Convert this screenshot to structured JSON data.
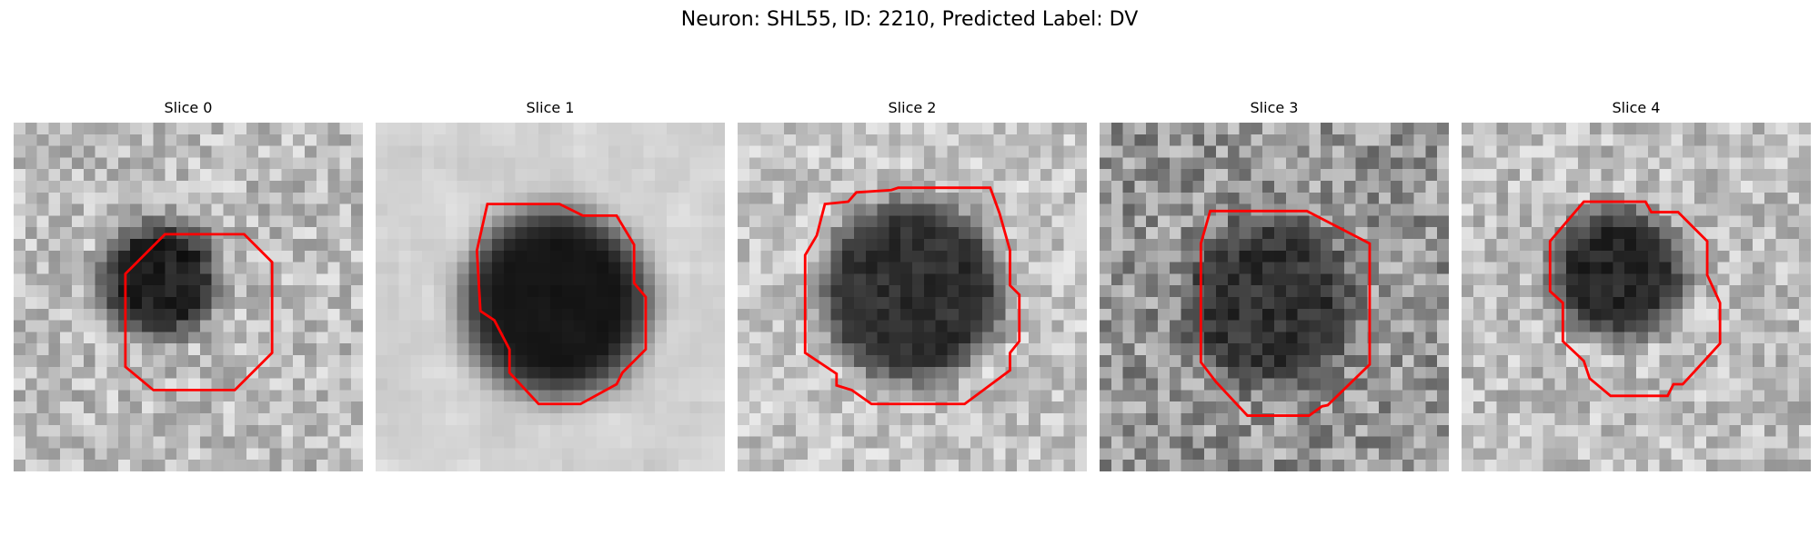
{
  "figure": {
    "title": "Neuron: SHL55, ID: 2210, Predicted Label: DV",
    "outline_color": "#ff0000",
    "colormap": "grayscale"
  },
  "slices": [
    {
      "title": "Slice 0",
      "image": "grayscale-microscopy-patch-with-red-cell-outline"
    },
    {
      "title": "Slice 1",
      "image": "grayscale-microscopy-patch-with-red-cell-outline"
    },
    {
      "title": "Slice 2",
      "image": "grayscale-microscopy-patch-with-red-cell-outline"
    },
    {
      "title": "Slice 3",
      "image": "grayscale-microscopy-patch-with-red-cell-outline"
    },
    {
      "title": "Slice 4",
      "image": "grayscale-microscopy-patch-with-red-cell-outline"
    }
  ]
}
